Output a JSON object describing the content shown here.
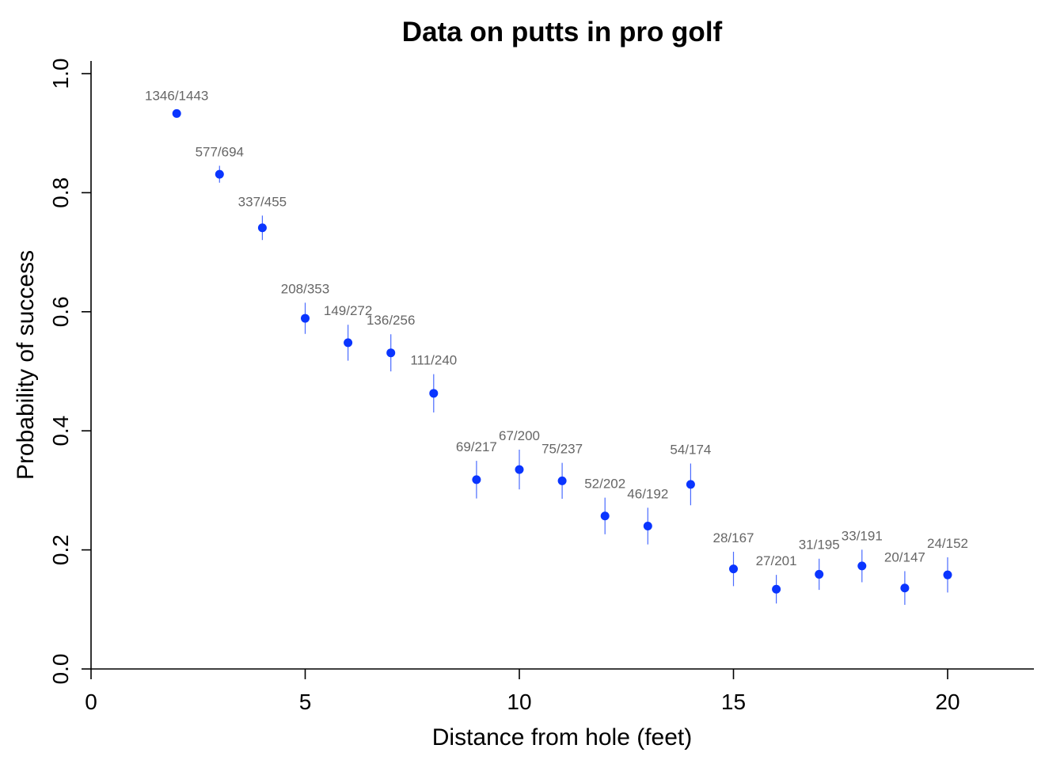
{
  "chart_data": {
    "type": "scatter",
    "title": "Data on putts in pro golf",
    "xlabel": "Distance from hole (feet)",
    "ylabel": "Probability of success",
    "xlim": [
      0,
      22
    ],
    "ylim": [
      0,
      1.0
    ],
    "x_ticks": [
      0,
      5,
      10,
      15,
      20
    ],
    "x_tick_labels": [
      "0",
      "5",
      "10",
      "15",
      "20"
    ],
    "y_ticks": [
      0,
      0.2,
      0.4,
      0.6,
      0.8,
      1.0
    ],
    "y_tick_labels": [
      "0.0",
      "0.2",
      "0.4",
      "0.6",
      "0.8",
      "1.0"
    ],
    "grid": false,
    "colors": {
      "point": "#0a35ff",
      "error_bar": "#4a6bff",
      "data_label": "#666666"
    },
    "points": [
      {
        "x": 2,
        "successes": 1346,
        "attempts": 1443,
        "y": 0.933,
        "label": "1346/1443"
      },
      {
        "x": 3,
        "successes": 577,
        "attempts": 694,
        "y": 0.831,
        "label": "577/694"
      },
      {
        "x": 4,
        "successes": 337,
        "attempts": 455,
        "y": 0.741,
        "label": "337/455"
      },
      {
        "x": 5,
        "successes": 208,
        "attempts": 353,
        "y": 0.589,
        "label": "208/353"
      },
      {
        "x": 6,
        "successes": 149,
        "attempts": 272,
        "y": 0.548,
        "label": "149/272"
      },
      {
        "x": 7,
        "successes": 136,
        "attempts": 256,
        "y": 0.531,
        "label": "136/256"
      },
      {
        "x": 8,
        "successes": 111,
        "attempts": 240,
        "y": 0.463,
        "label": "111/240"
      },
      {
        "x": 9,
        "successes": 69,
        "attempts": 217,
        "y": 0.318,
        "label": "69/217"
      },
      {
        "x": 10,
        "successes": 67,
        "attempts": 200,
        "y": 0.335,
        "label": "67/200"
      },
      {
        "x": 11,
        "successes": 75,
        "attempts": 237,
        "y": 0.316,
        "label": "75/237"
      },
      {
        "x": 12,
        "successes": 52,
        "attempts": 202,
        "y": 0.257,
        "label": "52/202"
      },
      {
        "x": 13,
        "successes": 46,
        "attempts": 192,
        "y": 0.24,
        "label": "46/192"
      },
      {
        "x": 14,
        "successes": 54,
        "attempts": 174,
        "y": 0.31,
        "label": "54/174"
      },
      {
        "x": 15,
        "successes": 28,
        "attempts": 167,
        "y": 0.168,
        "label": "28/167"
      },
      {
        "x": 16,
        "successes": 27,
        "attempts": 201,
        "y": 0.134,
        "label": "27/201"
      },
      {
        "x": 17,
        "successes": 31,
        "attempts": 195,
        "y": 0.159,
        "label": "31/195"
      },
      {
        "x": 18,
        "successes": 33,
        "attempts": 191,
        "y": 0.173,
        "label": "33/191"
      },
      {
        "x": 19,
        "successes": 20,
        "attempts": 147,
        "y": 0.136,
        "label": "20/147"
      },
      {
        "x": 20,
        "successes": 24,
        "attempts": 152,
        "y": 0.158,
        "label": "24/152"
      }
    ]
  }
}
